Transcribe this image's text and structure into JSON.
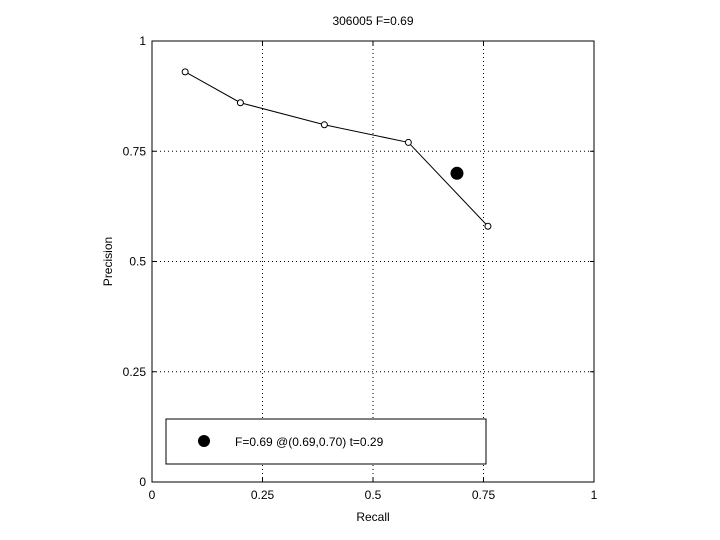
{
  "chart_data": {
    "type": "line",
    "title": "306005 F=0.69",
    "xlabel": "Recall",
    "ylabel": "Precision",
    "xlim": [
      0,
      1
    ],
    "ylim": [
      0,
      1
    ],
    "xticks": [
      0,
      0.25,
      0.5,
      0.75,
      1
    ],
    "yticks": [
      0,
      0.25,
      0.5,
      0.75,
      1
    ],
    "xtick_labels": [
      "0",
      "0.25",
      "0.5",
      "0.75",
      "1"
    ],
    "ytick_labels": [
      "0",
      "0.25",
      "0.5",
      "0.75",
      "1"
    ],
    "grid": true,
    "legend_position": "bottom",
    "series": [
      {
        "x": [
          0.075,
          0.2,
          0.39,
          0.58,
          0.76
        ],
        "y": [
          0.93,
          0.86,
          0.81,
          0.77,
          0.58
        ],
        "line": true,
        "marker": "open-circle",
        "color": "#000000"
      }
    ],
    "highlight": {
      "x": 0.69,
      "y": 0.7,
      "marker": "filled-circle",
      "color": "#000000"
    },
    "legend_entries": [
      {
        "label": "F=0.69 @(0.69,0.70) t=0.29",
        "marker": "filled-circle"
      }
    ]
  }
}
